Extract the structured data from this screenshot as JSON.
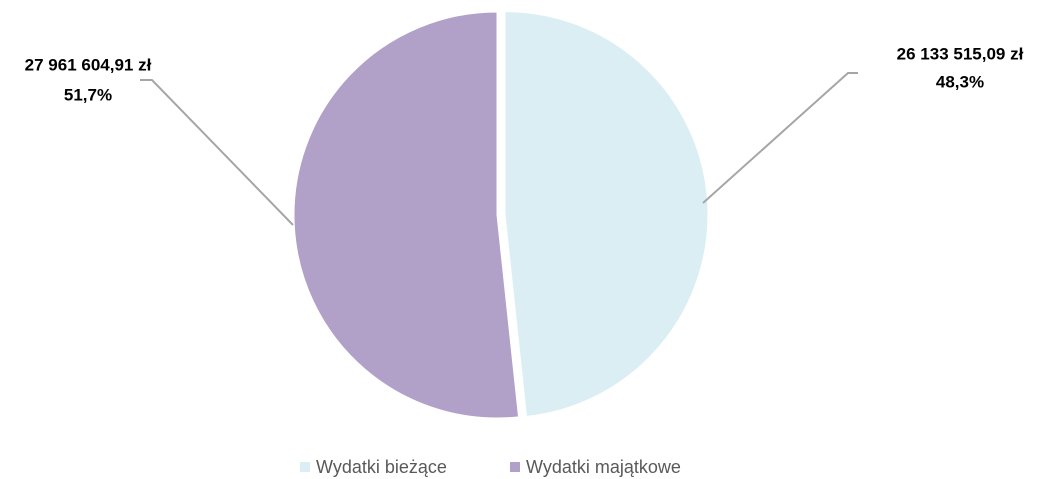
{
  "chart_data": {
    "type": "pie",
    "categories": [
      "Wydatki bieżące",
      "Wydatki majątkowe"
    ],
    "values": [
      26133515.09,
      27961604.91
    ],
    "value_labels": [
      "26 133 515,09 zł",
      "27 961 604,91 zł"
    ],
    "percents": [
      48.3,
      51.7
    ],
    "percent_labels": [
      "48,3%",
      "51,7%"
    ],
    "colors": [
      "#dbeef4",
      "#b1a0c7"
    ],
    "legend": "bottom"
  }
}
